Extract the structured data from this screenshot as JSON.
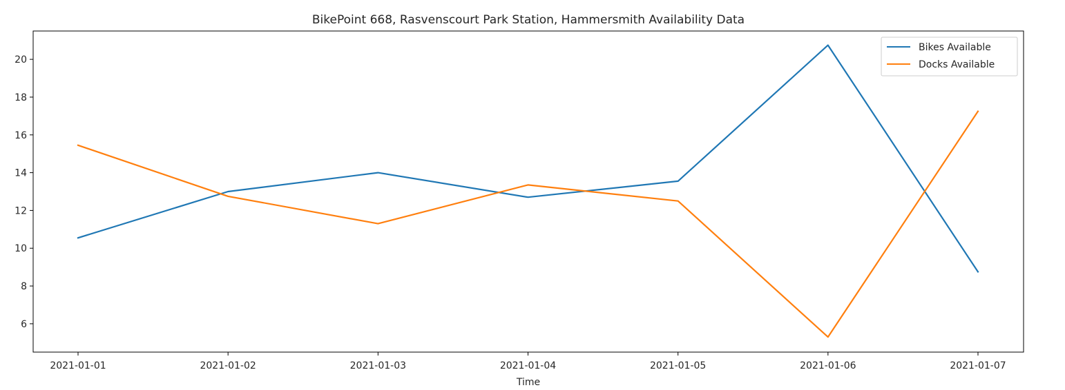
{
  "chart_data": {
    "type": "line",
    "title": "BikePoint 668, Rasvenscourt Park Station, Hammersmith Availability Data",
    "xlabel": "Time",
    "ylabel": "",
    "categories": [
      "2021-01-01",
      "2021-01-02",
      "2021-01-03",
      "2021-01-04",
      "2021-01-05",
      "2021-01-06",
      "2021-01-07"
    ],
    "yticks": [
      6,
      8,
      10,
      12,
      14,
      16,
      18,
      20
    ],
    "ylim": [
      4.5,
      21.5
    ],
    "grid": false,
    "legend_position": "top-right",
    "series": [
      {
        "name": "Bikes Available",
        "color": "#1f77b4",
        "values": [
          10.55,
          13.0,
          14.0,
          12.7,
          13.55,
          20.75,
          8.75
        ]
      },
      {
        "name": "Docks Available",
        "color": "#ff7f0e",
        "values": [
          15.45,
          12.75,
          11.3,
          13.35,
          12.5,
          5.3,
          17.25
        ]
      }
    ]
  }
}
